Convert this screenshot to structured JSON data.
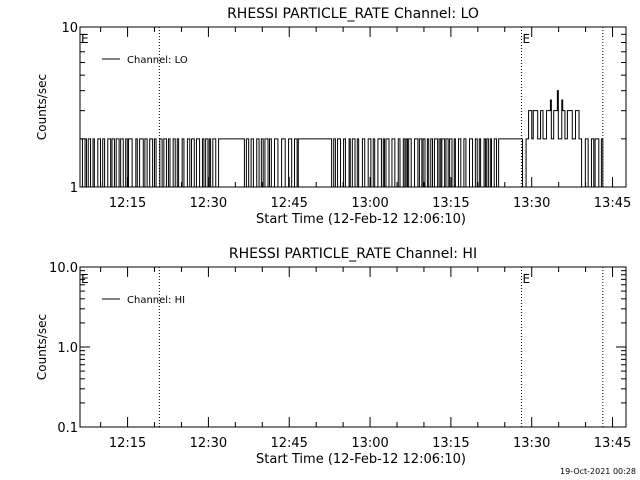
{
  "footer_timestamp": "19-Oct-2021 00:28",
  "chart_data": [
    {
      "type": "line",
      "title": "RHESSI PARTICLE_RATE Channel: LO",
      "xlabel": "Start Time (12-Feb-12 12:06:10)",
      "ylabel": "Counts/sec",
      "y_scale": "log",
      "ylim": [
        1,
        10
      ],
      "y_ticks": [
        {
          "value": 10,
          "label": "10"
        },
        {
          "value": 1,
          "label": "1"
        }
      ],
      "x_ticks": [
        "12:15",
        "12:30",
        "12:45",
        "13:00",
        "13:15",
        "13:30",
        "13:45"
      ],
      "x_tick_minutes": [
        15,
        30,
        45,
        60,
        75,
        90,
        105
      ],
      "xlim_minutes": [
        6.17,
        107.5
      ],
      "legend": "Channel: LO",
      "legend_position": "top-left",
      "eclipse_markers": [
        {
          "label": "E",
          "minute": 6.17
        },
        {
          "label": "E",
          "minute": 88.1
        }
      ],
      "vertical_dotted_lines_minutes": [
        20.9,
        88.1,
        103.2
      ],
      "series": [
        {
          "name": "Channel: LO",
          "baseline_level": 1,
          "upper_level": 2,
          "toggle_interval_minutes": 0.35,
          "flat_segments": [
            {
              "start": 31.5,
              "end": 36.0,
              "value": 2
            },
            {
              "start": 46.5,
              "end": 52.5,
              "value": 2
            },
            {
              "start": 84.0,
              "end": 88.3,
              "value": 2
            }
          ],
          "peak_points": [
            {
              "minute": 87.0,
              "value": 3.0
            },
            {
              "minute": 89.5,
              "value": 3.0
            },
            {
              "minute": 90.5,
              "value": 3.0
            },
            {
              "minute": 92.5,
              "value": 3.0
            },
            {
              "minute": 93.3,
              "value": 3.5
            },
            {
              "minute": 94.3,
              "value": 4.0
            },
            {
              "minute": 95.3,
              "value": 3.5
            },
            {
              "minute": 96.5,
              "value": 3.0
            },
            {
              "minute": 97.3,
              "value": 3.0
            }
          ],
          "data_end_minute": 103.2
        }
      ]
    },
    {
      "type": "line",
      "title": "RHESSI PARTICLE_RATE Channel: HI",
      "xlabel": "Start Time (12-Feb-12 12:06:10)",
      "ylabel": "Counts/sec",
      "y_scale": "log",
      "ylim": [
        0.1,
        10
      ],
      "y_ticks": [
        {
          "value": 10,
          "label": "10.0"
        },
        {
          "value": 1,
          "label": "1.0"
        },
        {
          "value": 0.1,
          "label": "0.1"
        }
      ],
      "x_ticks": [
        "12:15",
        "12:30",
        "12:45",
        "13:00",
        "13:15",
        "13:30",
        "13:45"
      ],
      "x_tick_minutes": [
        15,
        30,
        45,
        60,
        75,
        90,
        105
      ],
      "xlim_minutes": [
        6.17,
        107.5
      ],
      "legend": "Channel: HI",
      "legend_position": "top-left",
      "eclipse_markers": [
        {
          "label": "E",
          "minute": 6.17
        },
        {
          "label": "E",
          "minute": 88.1
        }
      ],
      "vertical_dotted_lines_minutes": [
        20.9,
        88.1,
        103.2
      ],
      "series": [
        {
          "name": "Channel: HI",
          "values": []
        }
      ]
    }
  ]
}
